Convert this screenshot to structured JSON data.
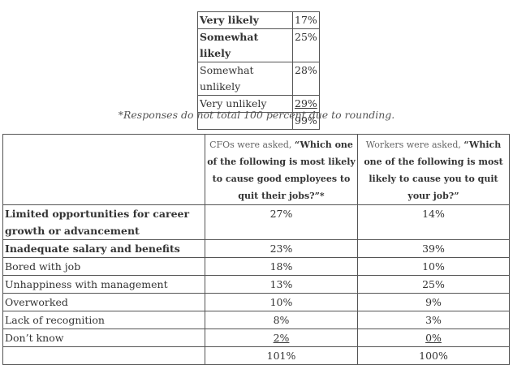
{
  "likelihood_table": {
    "rows": [
      {
        "label": "Very likely",
        "value": "17%",
        "bold": true
      },
      {
        "label": "Somewhat likely",
        "value": "25%",
        "bold": true
      },
      {
        "label": "Somewhat unlikely",
        "value": "28%",
        "bold": false
      },
      {
        "label": "Very unlikely",
        "value": "29%",
        "bold": false,
        "underline_value": true
      }
    ],
    "total": "99%"
  },
  "footnote": "*Responses do not total 100 percent due to rounding.",
  "reasons_table": {
    "cfo_header": {
      "lead": "CFOs were asked, ",
      "question": "“Which one of the following is most likely to cause good employees to quit their jobs?”*"
    },
    "worker_header": {
      "lead": "Workers were asked, ",
      "question": "“Which one of the following is most likely to cause you to quit your job?”"
    },
    "rows": [
      {
        "label": "Limited opportunities for career growth or advancement",
        "cfo": "27%",
        "worker": "14%",
        "bold": true
      },
      {
        "label": "Inadequate salary and benefits",
        "cfo": "23%",
        "worker": "39%",
        "bold": true
      },
      {
        "label": "Bored with job",
        "cfo": "18%",
        "worker": "10%",
        "bold": false
      },
      {
        "label": "Unhappiness with management",
        "cfo": "13%",
        "worker": "25%",
        "bold": false
      },
      {
        "label": "Overworked",
        "cfo": "10%",
        "worker": "9%",
        "bold": false
      },
      {
        "label": "Lack of recognition",
        "cfo": "8%",
        "worker": "3%",
        "bold": false
      },
      {
        "label": "Don’t know",
        "cfo": "2%",
        "worker": "0%",
        "bold": false,
        "underline_values": true
      }
    ],
    "totals": {
      "cfo": "101%",
      "worker": "100%"
    }
  }
}
